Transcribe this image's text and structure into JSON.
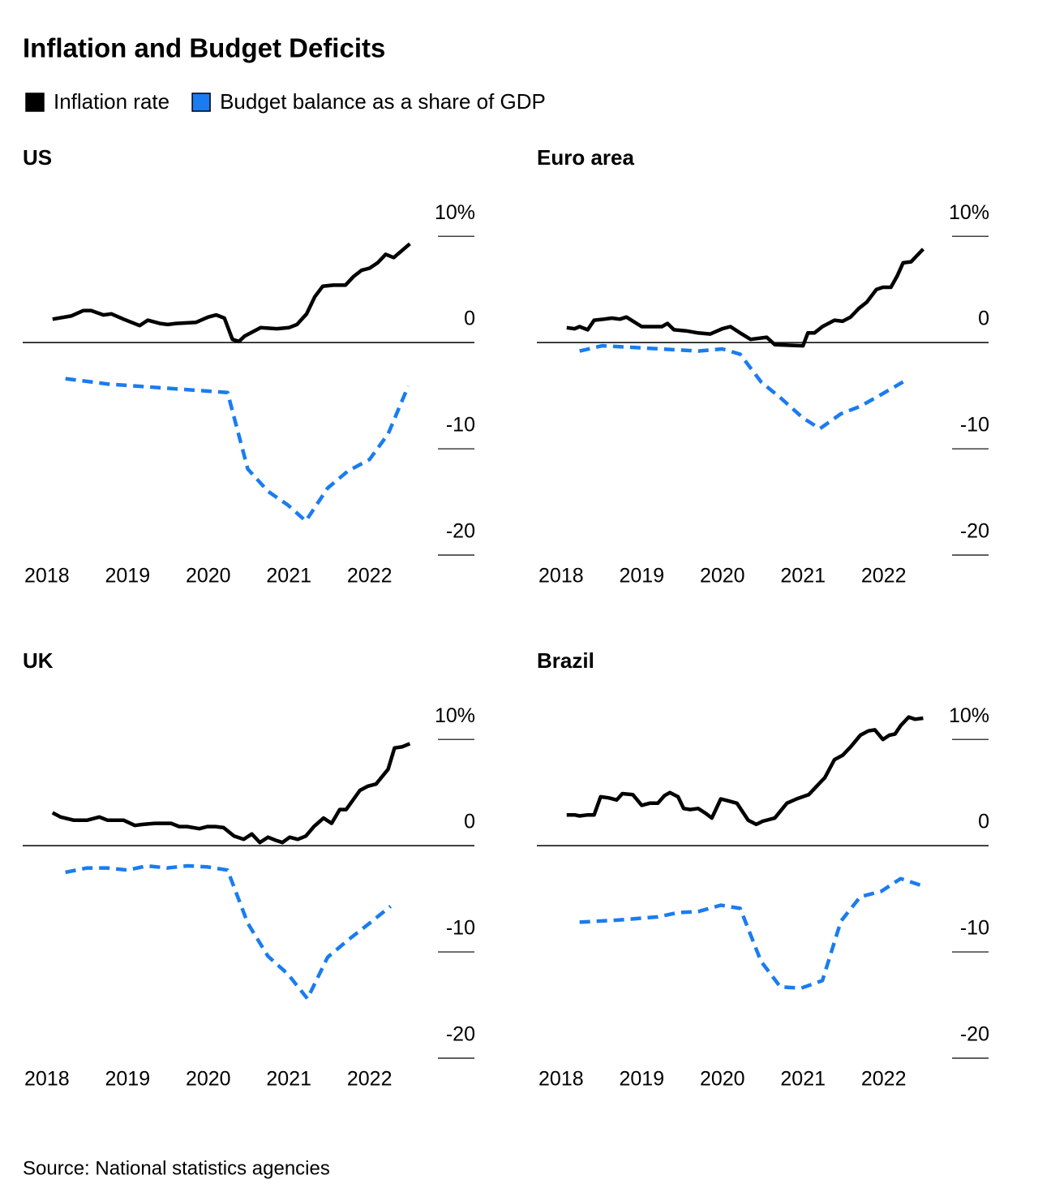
{
  "title": "Inflation and Budget Deficits",
  "source": "Source: National statistics agencies",
  "chart_data": [
    {
      "type": "line",
      "title": "US",
      "xlim": [
        2017.7,
        2023.3
      ],
      "xticks": [
        2018,
        2019,
        2020,
        2021,
        2022
      ],
      "ylim": [
        -20,
        12
      ],
      "yticks": [
        -20,
        -10,
        0,
        {
          "value": 10,
          "label": "10%"
        }
      ],
      "series": [
        {
          "name": "Inflation rate",
          "color": "#000000",
          "dashed": false,
          "x": [
            2018.07,
            2018.3,
            2018.45,
            2018.55,
            2018.7,
            2018.8,
            2018.95,
            2019.15,
            2019.25,
            2019.4,
            2019.5,
            2019.6,
            2019.85,
            2020.0,
            2020.1,
            2020.2,
            2020.3,
            2020.38,
            2020.45,
            2020.65,
            2020.85,
            2021.0,
            2021.1,
            2021.22,
            2021.32,
            2021.42,
            2021.55,
            2021.7,
            2021.8,
            2021.9,
            2022.0,
            2022.1,
            2022.2,
            2022.3,
            2022.5
          ],
          "values": [
            2.2,
            2.5,
            3.0,
            3.0,
            2.6,
            2.7,
            2.2,
            1.6,
            2.1,
            1.8,
            1.7,
            1.8,
            1.9,
            2.4,
            2.6,
            2.3,
            0.3,
            0.1,
            0.6,
            1.4,
            1.3,
            1.4,
            1.7,
            2.7,
            4.3,
            5.3,
            5.4,
            5.4,
            6.2,
            6.8,
            7.0,
            7.5,
            8.3,
            8.0,
            9.3
          ]
        },
        {
          "name": "Budget balance as a share of GDP",
          "color": "#1a7cf0",
          "dashed": true,
          "x": [
            2018.23,
            2018.75,
            2020.24,
            2020.49,
            2020.74,
            2020.99,
            2021.21,
            2021.48,
            2021.73,
            2022.0,
            2022.23,
            2022.48
          ],
          "values": [
            -3.4,
            -3.9,
            -4.7,
            -11.9,
            -14.0,
            -15.3,
            -16.8,
            -13.7,
            -12.1,
            -11.0,
            -8.6,
            -4.1
          ]
        }
      ]
    },
    {
      "type": "line",
      "title": "Euro area",
      "xlim": [
        2017.7,
        2023.3
      ],
      "xticks": [
        2018,
        2019,
        2020,
        2021,
        2022
      ],
      "ylim": [
        -20,
        12
      ],
      "yticks": [
        -20,
        -10,
        0,
        {
          "value": 10,
          "label": "10%"
        }
      ],
      "series": [
        {
          "color": "#000000",
          "dashed": false,
          "x": [
            2018.07,
            2018.17,
            2018.23,
            2018.33,
            2018.41,
            2018.53,
            2018.63,
            2018.73,
            2018.81,
            2019.0,
            2019.15,
            2019.25,
            2019.32,
            2019.4,
            2019.55,
            2019.7,
            2019.85,
            2020.0,
            2020.1,
            2020.22,
            2020.35,
            2020.55,
            2020.65,
            2021.0,
            2021.06,
            2021.14,
            2021.24,
            2021.39,
            2021.49,
            2021.59,
            2021.69,
            2021.79,
            2021.91,
            2021.99,
            2022.09,
            2022.17,
            2022.24,
            2022.34,
            2022.49
          ],
          "values": [
            1.4,
            1.3,
            1.5,
            1.2,
            2.1,
            2.2,
            2.3,
            2.2,
            2.4,
            1.5,
            1.5,
            1.5,
            1.8,
            1.2,
            1.1,
            0.9,
            0.8,
            1.3,
            1.5,
            0.9,
            0.3,
            0.5,
            -0.2,
            -0.3,
            0.9,
            0.9,
            1.5,
            2.1,
            2.0,
            2.4,
            3.2,
            3.8,
            5.0,
            5.2,
            5.2,
            6.3,
            7.5,
            7.6,
            8.8
          ]
        },
        {
          "color": "#1a7cf0",
          "dashed": true,
          "x": [
            2018.23,
            2018.51,
            2019.0,
            2019.7,
            2020.0,
            2020.22,
            2020.48,
            2020.72,
            2021.0,
            2021.21,
            2021.47,
            2021.71,
            2021.99,
            2022.24
          ],
          "values": [
            -0.8,
            -0.3,
            -0.5,
            -0.8,
            -0.6,
            -1.1,
            -3.7,
            -5.2,
            -7.1,
            -8.1,
            -6.7,
            -6.0,
            -4.8,
            -3.7
          ]
        }
      ]
    },
    {
      "type": "line",
      "title": "UK",
      "xlim": [
        2017.7,
        2023.3
      ],
      "xticks": [
        2018,
        2019,
        2020,
        2021,
        2022
      ],
      "ylim": [
        -20,
        12
      ],
      "yticks": [
        -20,
        -10,
        0,
        {
          "value": 10,
          "label": "10%"
        }
      ],
      "series": [
        {
          "color": "#000000",
          "dashed": false,
          "x": [
            2018.07,
            2018.17,
            2018.33,
            2018.5,
            2018.65,
            2018.75,
            2018.95,
            2019.09,
            2019.19,
            2019.34,
            2019.54,
            2019.64,
            2019.74,
            2019.89,
            2019.99,
            2020.09,
            2020.19,
            2020.32,
            2020.44,
            2020.54,
            2020.64,
            2020.74,
            2020.84,
            2020.92,
            2021.01,
            2021.11,
            2021.21,
            2021.31,
            2021.43,
            2021.53,
            2021.63,
            2021.71,
            2021.88,
            2021.98,
            2022.08,
            2022.23,
            2022.31,
            2022.4,
            2022.5
          ],
          "values": [
            3.1,
            2.7,
            2.4,
            2.4,
            2.7,
            2.4,
            2.4,
            1.9,
            2.0,
            2.1,
            2.1,
            1.8,
            1.8,
            1.6,
            1.8,
            1.8,
            1.7,
            0.9,
            0.6,
            1.1,
            0.3,
            0.8,
            0.5,
            0.3,
            0.8,
            0.6,
            0.9,
            1.8,
            2.6,
            2.1,
            3.4,
            3.4,
            5.2,
            5.6,
            5.8,
            7.2,
            9.2,
            9.3,
            9.6
          ]
        },
        {
          "color": "#1a7cf0",
          "dashed": true,
          "x": [
            2018.23,
            2018.5,
            2018.75,
            2019.0,
            2019.24,
            2019.49,
            2019.74,
            2019.99,
            2020.24,
            2020.49,
            2020.74,
            2020.99,
            2021.23,
            2021.48,
            2021.73,
            2022.0,
            2022.26
          ],
          "values": [
            -2.5,
            -2.1,
            -2.1,
            -2.3,
            -1.9,
            -2.1,
            -1.9,
            -2.0,
            -2.3,
            -7.3,
            -10.4,
            -12.1,
            -14.4,
            -10.5,
            -8.9,
            -7.3,
            -5.7
          ]
        }
      ]
    },
    {
      "type": "line",
      "title": "Brazil",
      "xlim": [
        2017.7,
        2023.3
      ],
      "xticks": [
        2018,
        2019,
        2020,
        2021,
        2022
      ],
      "ylim": [
        -20,
        12
      ],
      "yticks": [
        -20,
        -10,
        0,
        {
          "value": 10,
          "label": "10%"
        }
      ],
      "series": [
        {
          "color": "#000000",
          "dashed": false,
          "x": [
            2018.07,
            2018.17,
            2018.23,
            2018.33,
            2018.41,
            2018.49,
            2018.59,
            2018.69,
            2018.76,
            2018.89,
            2019.0,
            2019.1,
            2019.2,
            2019.28,
            2019.35,
            2019.45,
            2019.52,
            2019.6,
            2019.7,
            2019.8,
            2019.87,
            2019.98,
            2020.08,
            2020.18,
            2020.32,
            2020.42,
            2020.5,
            2020.65,
            2020.8,
            2020.92,
            2021.07,
            2021.17,
            2021.27,
            2021.39,
            2021.49,
            2021.59,
            2021.71,
            2021.81,
            2021.89,
            2021.99,
            2022.07,
            2022.14,
            2022.21,
            2022.31,
            2022.39,
            2022.49
          ],
          "values": [
            2.9,
            2.9,
            2.8,
            2.9,
            2.9,
            4.6,
            4.5,
            4.3,
            4.9,
            4.8,
            3.8,
            4.0,
            4.0,
            4.7,
            5.0,
            4.6,
            3.5,
            3.4,
            3.5,
            3.0,
            2.6,
            4.4,
            4.2,
            4.0,
            2.4,
            2.0,
            2.3,
            2.6,
            4.0,
            4.4,
            4.8,
            5.6,
            6.4,
            8.1,
            8.5,
            9.3,
            10.4,
            10.8,
            10.9,
            10.0,
            10.4,
            10.5,
            11.3,
            12.1,
            11.9,
            12.0
          ]
        },
        {
          "color": "#1a7cf0",
          "dashed": true,
          "x": [
            2018.23,
            2018.71,
            2019.2,
            2019.45,
            2019.7,
            2019.98,
            2020.22,
            2020.48,
            2020.72,
            2020.98,
            2021.24,
            2021.47,
            2021.71,
            2021.97,
            2022.21,
            2022.49
          ],
          "values": [
            -7.2,
            -7.0,
            -6.7,
            -6.3,
            -6.2,
            -5.6,
            -5.9,
            -10.9,
            -13.3,
            -13.4,
            -12.7,
            -7.1,
            -4.8,
            -4.3,
            -3.1,
            -3.8
          ]
        }
      ]
    }
  ]
}
